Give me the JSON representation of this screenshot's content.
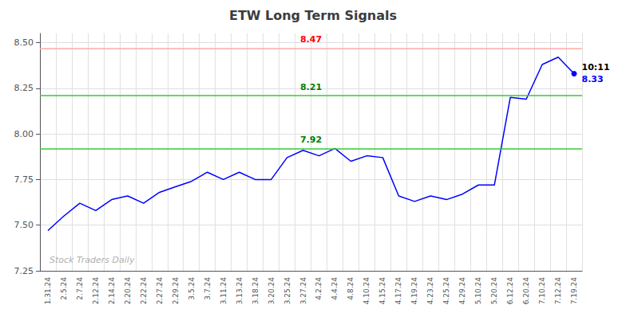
{
  "chart_data": {
    "type": "line",
    "title": "ETW Long Term Signals",
    "categories": [
      "1.31.24",
      "2.5.24",
      "2.7.24",
      "2.12.24",
      "2.14.24",
      "2.20.24",
      "2.22.24",
      "2.27.24",
      "2.29.24",
      "3.5.24",
      "3.7.24",
      "3.11.24",
      "3.13.24",
      "3.18.24",
      "3.20.24",
      "3.25.24",
      "3.27.24",
      "4.2.24",
      "4.4.24",
      "4.8.24",
      "4.10.24",
      "4.15.24",
      "4.17.24",
      "4.19.24",
      "4.23.24",
      "4.25.24",
      "4.29.24",
      "5.10.24",
      "5.20.24",
      "6.12.24",
      "6.20.24",
      "7.10.24",
      "7.12.24",
      "7.19.24"
    ],
    "values": [
      7.47,
      7.55,
      7.62,
      7.58,
      7.64,
      7.66,
      7.62,
      7.68,
      7.71,
      7.74,
      7.79,
      7.75,
      7.79,
      7.75,
      7.75,
      7.87,
      7.91,
      7.88,
      7.92,
      7.85,
      7.88,
      7.87,
      7.66,
      7.63,
      7.66,
      7.64,
      7.67,
      7.72,
      7.72,
      8.2,
      8.19,
      8.38,
      8.42,
      8.33
    ],
    "color": "blue",
    "marker": "circle",
    "hlines": [
      {
        "value": 8.47,
        "color": "#ffaaaa",
        "label_color": "red"
      },
      {
        "value": 8.21,
        "color": "#33cc33",
        "label_color": "green"
      },
      {
        "value": 7.92,
        "color": "#33cc33",
        "label_color": "green"
      }
    ],
    "annotations": [
      {
        "text": "10:11",
        "color": "black"
      },
      {
        "text": "8.33",
        "color": "blue"
      }
    ],
    "watermark": {
      "text": "Stock Traders Daily",
      "color": "#b0b0b0"
    },
    "ylim": [
      7.25,
      8.55
    ],
    "yticks": [
      7.25,
      {
        "value": 7.5,
        "label": "7.50"
      },
      7.75,
      {
        "value": 8.0,
        "label": "8.00"
      },
      8.25,
      {
        "value": 8.5,
        "label": "8.50"
      }
    ],
    "grid": true
  }
}
